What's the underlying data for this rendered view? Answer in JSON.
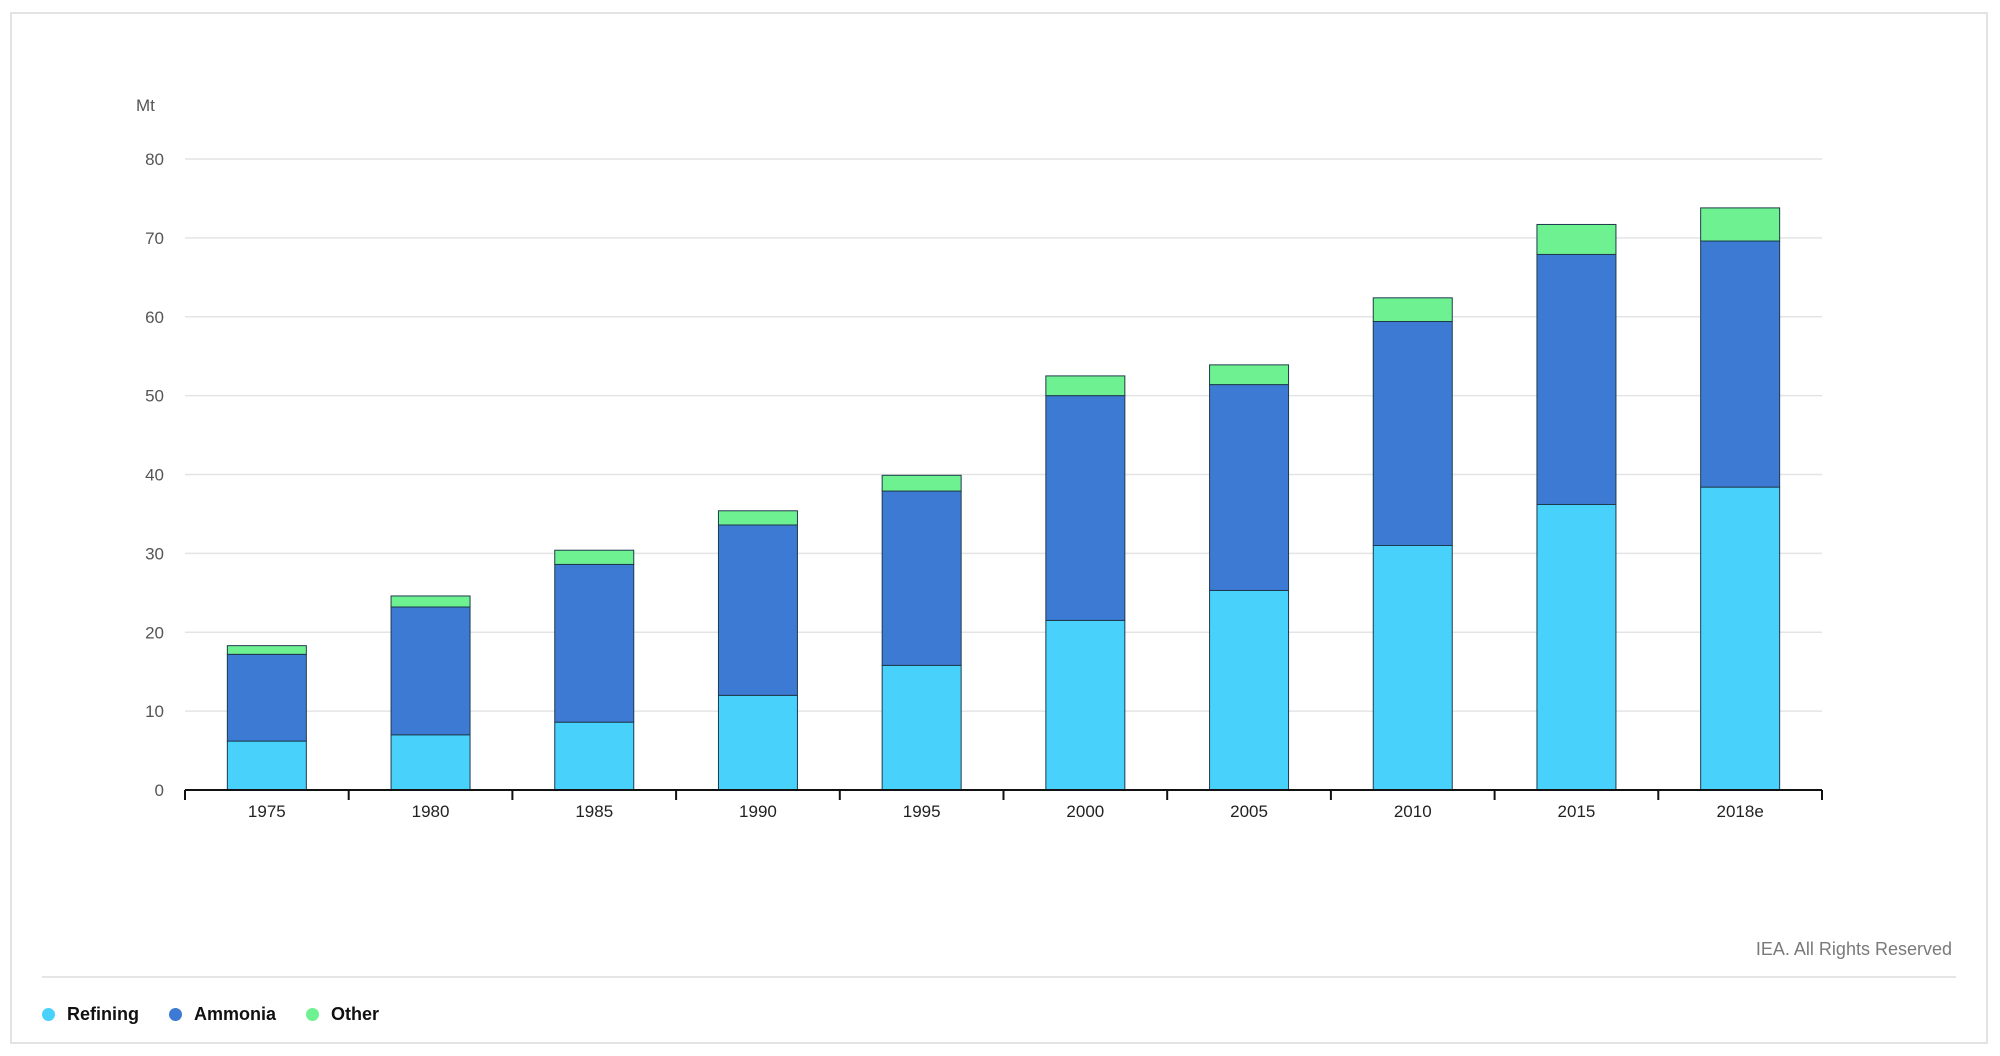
{
  "chart_data": {
    "type": "bar",
    "stacked": true,
    "unit_label": "Mt",
    "categories": [
      "1975",
      "1980",
      "1985",
      "1990",
      "1995",
      "2000",
      "2005",
      "2010",
      "2015",
      "2018e"
    ],
    "series": [
      {
        "name": "Refining",
        "color": "#47d1fb",
        "values": [
          6.2,
          7.0,
          8.6,
          12.0,
          15.8,
          21.5,
          25.3,
          31.0,
          36.2,
          38.4
        ]
      },
      {
        "name": "Ammonia",
        "color": "#3d7ad3",
        "values": [
          11.0,
          16.2,
          20.0,
          21.6,
          22.1,
          28.5,
          26.1,
          28.4,
          31.7,
          31.2
        ]
      },
      {
        "name": "Other",
        "color": "#6ef291",
        "values": [
          1.1,
          1.4,
          1.8,
          1.8,
          2.0,
          2.5,
          2.5,
          3.0,
          3.8,
          4.2
        ]
      }
    ],
    "ylim": [
      0,
      80
    ],
    "yticks": [
      0,
      10,
      20,
      30,
      40,
      50,
      60,
      70,
      80
    ],
    "grid": true,
    "legend_position": "bottom-left"
  },
  "credit": "IEA. All Rights Reserved"
}
